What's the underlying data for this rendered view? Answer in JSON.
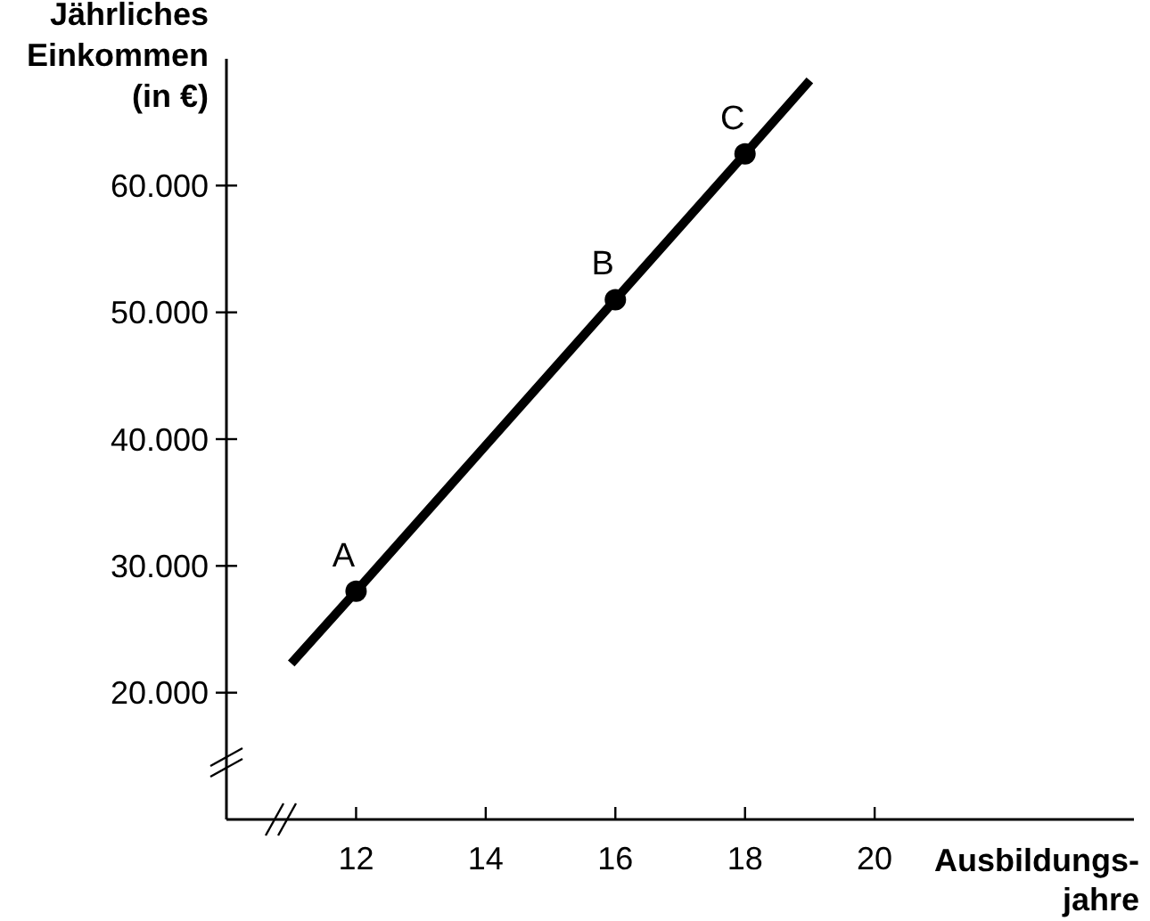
{
  "chart_data": {
    "type": "line",
    "ylabel": "Jährliches Einkommen (in €)",
    "xlabel": "Ausbildungs-jahre",
    "xlim": [
      10,
      24
    ],
    "xticks": [
      12,
      14,
      16,
      18,
      20
    ],
    "ylim": [
      10000,
      70000
    ],
    "yticks": [
      {
        "value": 20000,
        "label": "20.000"
      },
      {
        "value": 30000,
        "label": "30.000"
      },
      {
        "value": 40000,
        "label": "40.000"
      },
      {
        "value": 50000,
        "label": "50.000"
      },
      {
        "value": 60000,
        "label": "60.000"
      }
    ],
    "grid": false,
    "series": [
      {
        "color": "#000000",
        "x": [
          11,
          12,
          16,
          18,
          19
        ],
        "values": [
          22300,
          28000,
          51000,
          62500,
          68300
        ],
        "marker": "none",
        "line_style": "solid"
      },
      {
        "type": "scatter",
        "color": "#000000",
        "x": [
          12,
          16,
          18
        ],
        "values": [
          28000,
          51000,
          62500
        ],
        "marker": "circle"
      }
    ],
    "annotations": [
      {
        "text": "A",
        "x": 12,
        "y": 28000
      },
      {
        "text": "B",
        "x": 16,
        "y": 51000
      },
      {
        "text": "C",
        "x": 18,
        "y": 62500
      }
    ]
  }
}
